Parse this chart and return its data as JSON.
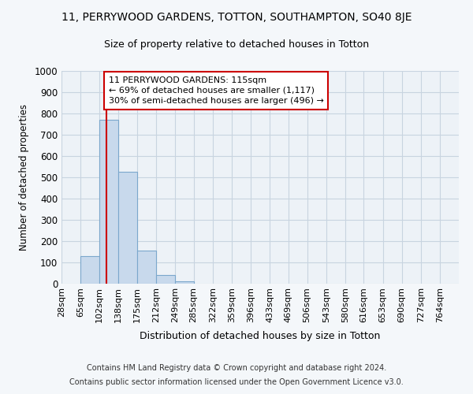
{
  "title_line1": "11, PERRYWOOD GARDENS, TOTTON, SOUTHAMPTON, SO40 8JE",
  "title_line2": "Size of property relative to detached houses in Totton",
  "xlabel": "Distribution of detached houses by size in Totton",
  "ylabel": "Number of detached properties",
  "bin_labels": [
    "28sqm",
    "65sqm",
    "102sqm",
    "138sqm",
    "175sqm",
    "212sqm",
    "249sqm",
    "285sqm",
    "322sqm",
    "359sqm",
    "396sqm",
    "433sqm",
    "469sqm",
    "506sqm",
    "543sqm",
    "580sqm",
    "616sqm",
    "653sqm",
    "690sqm",
    "727sqm",
    "764sqm"
  ],
  "bin_edges": [
    28,
    65,
    102,
    138,
    175,
    212,
    249,
    285,
    322,
    359,
    396,
    433,
    469,
    506,
    543,
    580,
    616,
    653,
    690,
    727,
    764,
    801
  ],
  "bar_heights": [
    0,
    130,
    770,
    525,
    155,
    40,
    10,
    0,
    0,
    0,
    0,
    0,
    0,
    0,
    0,
    0,
    0,
    0,
    0,
    0,
    0
  ],
  "bar_color": "#c8d9ec",
  "bar_edge_color": "#7ba7cc",
  "grid_color": "#c8d4e0",
  "vline_x": 115,
  "vline_color": "#cc0000",
  "annotation_text": "11 PERRYWOOD GARDENS: 115sqm\n← 69% of detached houses are smaller (1,117)\n30% of semi-detached houses are larger (496) →",
  "annotation_box_color": "#cc0000",
  "ylim": [
    0,
    1000
  ],
  "yticks": [
    0,
    100,
    200,
    300,
    400,
    500,
    600,
    700,
    800,
    900,
    1000
  ],
  "footer_line1": "Contains HM Land Registry data © Crown copyright and database right 2024.",
  "footer_line2": "Contains public sector information licensed under the Open Government Licence v3.0.",
  "bg_color": "#f4f7fa",
  "plot_bg_color": "#edf2f7"
}
